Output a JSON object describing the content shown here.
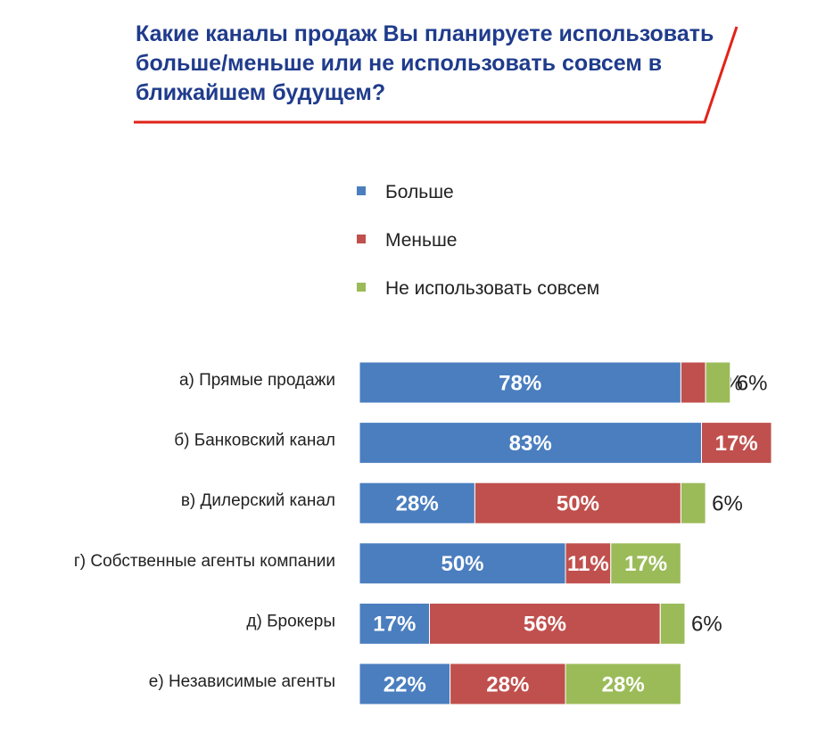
{
  "chart_data": {
    "type": "bar",
    "orientation": "horizontal",
    "stacked": true,
    "title": "Какие каналы продаж Вы планируете использовать больше/меньше или не использовать совсем в ближайшем будущем?",
    "categories": [
      "а) Прямые продажи",
      "б) Банковский канал",
      "в) Дилерский канал",
      "г) Собственные агенты компании",
      "д) Брокеры",
      "е) Независимые агенты"
    ],
    "series": [
      {
        "name": "Больше",
        "color": "#4a7ebf",
        "values": [
          78,
          83,
          28,
          50,
          17,
          22
        ]
      },
      {
        "name": "Меньше",
        "color": "#c0504d",
        "values": [
          6,
          17,
          50,
          11,
          56,
          28
        ]
      },
      {
        "name": "Не использовать совсем",
        "color": "#9bbb59",
        "values": [
          6,
          0,
          6,
          17,
          6,
          28
        ]
      }
    ],
    "value_suffix": "%",
    "xlim": [
      0,
      100
    ],
    "legend_position": "top",
    "grid": false
  },
  "colors": {
    "title": "#1f3b8c",
    "title_rule": "#e2231a"
  }
}
